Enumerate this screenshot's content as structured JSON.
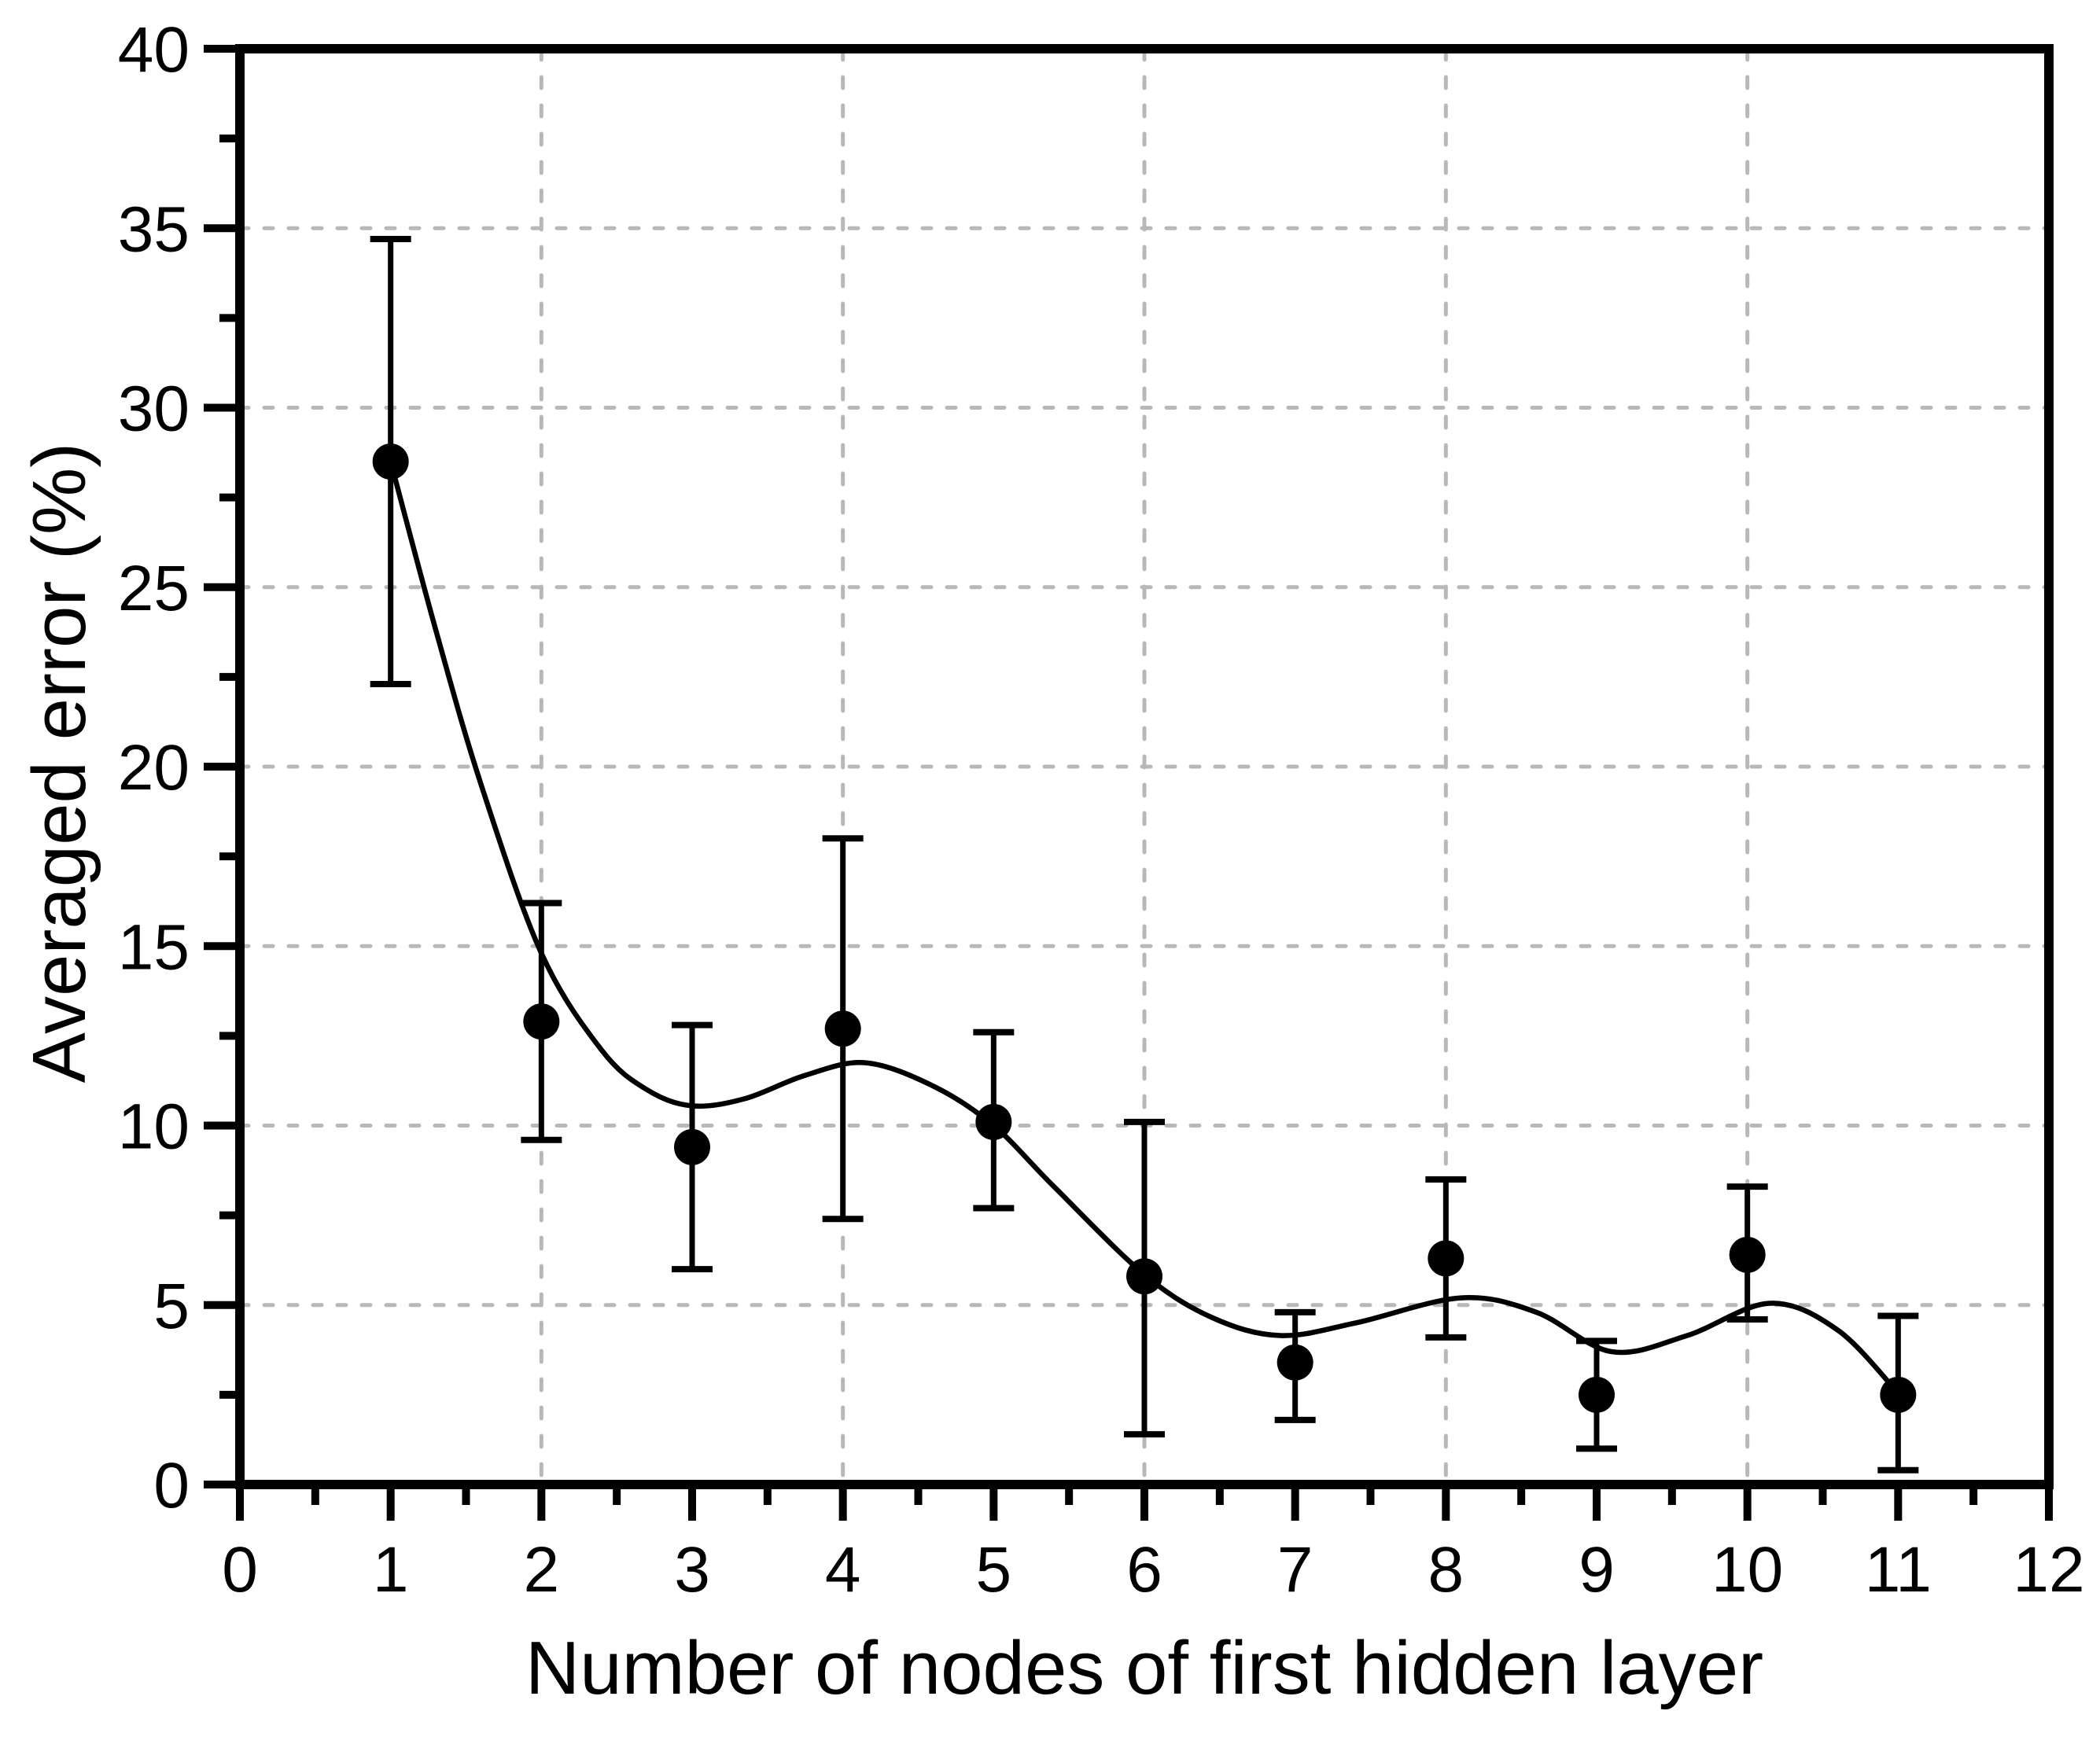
{
  "chart_data": {
    "type": "scatter",
    "title": "",
    "xlabel": "Number of nodes of first hidden layer",
    "ylabel": "Averaged error (%)",
    "xlim": [
      0,
      12
    ],
    "ylim": [
      0,
      40
    ],
    "x_major_ticks": [
      0,
      1,
      2,
      3,
      4,
      5,
      6,
      7,
      8,
      9,
      10,
      11,
      12
    ],
    "x_minor_ticks": [
      0.5,
      1.5,
      2.5,
      3.5,
      4.5,
      5.5,
      6.5,
      7.5,
      8.5,
      9.5,
      10.5,
      11.5
    ],
    "y_major_ticks": [
      0,
      5,
      10,
      15,
      20,
      25,
      30,
      35,
      40
    ],
    "y_minor_ticks": [
      2.5,
      7.5,
      12.5,
      17.5,
      22.5,
      27.5,
      32.5,
      37.5
    ],
    "grid": {
      "horizontal_lines_at": [
        5,
        10,
        15,
        20,
        25,
        30,
        35
      ],
      "vertical_lines_at": [
        2,
        4,
        6,
        8,
        10
      ],
      "style": "dotted",
      "color": "#b8b8b8"
    },
    "legend": "none",
    "axis_color": "#000000",
    "background": "#ffffff",
    "series": [
      {
        "name": "Averaged error",
        "type": "scatter_with_error_bars",
        "marker": "filled-circle",
        "color": "#000000",
        "points": [
          {
            "x": 1,
            "y": 28.5,
            "err_lo": 22.3,
            "err_hi": 34.7
          },
          {
            "x": 2,
            "y": 12.9,
            "err_lo": 9.6,
            "err_hi": 16.2
          },
          {
            "x": 3,
            "y": 9.4,
            "err_lo": 6.0,
            "err_hi": 12.8
          },
          {
            "x": 4,
            "y": 12.7,
            "err_lo": 7.4,
            "err_hi": 18.0
          },
          {
            "x": 5,
            "y": 10.1,
            "err_lo": 7.7,
            "err_hi": 12.6
          },
          {
            "x": 6,
            "y": 5.8,
            "err_lo": 1.4,
            "err_hi": 10.1
          },
          {
            "x": 7,
            "y": 3.4,
            "err_lo": 1.8,
            "err_hi": 4.8
          },
          {
            "x": 8,
            "y": 6.3,
            "err_lo": 4.1,
            "err_hi": 8.5
          },
          {
            "x": 9,
            "y": 2.5,
            "err_lo": 1.0,
            "err_hi": 4.0
          },
          {
            "x": 10,
            "y": 6.4,
            "err_lo": 4.6,
            "err_hi": 8.3
          },
          {
            "x": 11,
            "y": 2.5,
            "err_lo": 0.4,
            "err_hi": 4.7
          }
        ]
      },
      {
        "name": "B-spline fit curve",
        "type": "smooth_line",
        "color": "#000000",
        "samples": [
          [
            1,
            28.5
          ],
          [
            1.3,
            23.8
          ],
          [
            1.6,
            19.5
          ],
          [
            2,
            14.8
          ],
          [
            2.4,
            12.1
          ],
          [
            2.7,
            11.0
          ],
          [
            3,
            10.55
          ],
          [
            3.35,
            10.75
          ],
          [
            3.75,
            11.4
          ],
          [
            4.15,
            11.75
          ],
          [
            4.6,
            11.1
          ],
          [
            5,
            10.0
          ],
          [
            5.4,
            8.3
          ],
          [
            6,
            5.85
          ],
          [
            6.45,
            4.65
          ],
          [
            6.9,
            4.15
          ],
          [
            7.4,
            4.5
          ],
          [
            8.1,
            5.2
          ],
          [
            8.6,
            4.8
          ],
          [
            9.1,
            3.7
          ],
          [
            9.6,
            4.15
          ],
          [
            10.15,
            5.05
          ],
          [
            10.6,
            4.3
          ],
          [
            11,
            2.55
          ]
        ]
      }
    ]
  }
}
